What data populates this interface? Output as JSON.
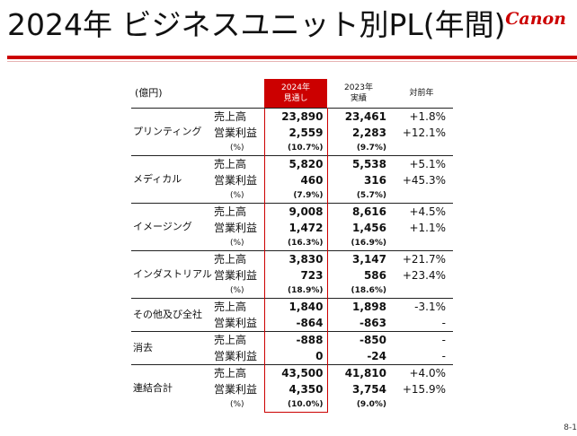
{
  "header": {
    "title": "2024年 ビジネスユニット別PL(年間)",
    "brand": "Canon",
    "page_number": "8-1"
  },
  "table": {
    "unit_label": "(億円)",
    "col_2024": [
      "2024年",
      "見通し"
    ],
    "col_2023": [
      "2023年",
      "実績"
    ],
    "col_yoy": "対前年",
    "segments": [
      {
        "name": "プリンティング",
        "rows": [
          {
            "item": "売上高",
            "v2024": "23,890",
            "v2023": "23,461",
            "yoy": "+1.8%"
          },
          {
            "item": "営業利益",
            "v2024": "2,559",
            "v2023": "2,283",
            "yoy": "+12.1%"
          },
          {
            "item": "(%)",
            "v2024": "(10.7%)",
            "v2023": "(9.7%)",
            "yoy": ""
          }
        ]
      },
      {
        "name": "メディカル",
        "rows": [
          {
            "item": "売上高",
            "v2024": "5,820",
            "v2023": "5,538",
            "yoy": "+5.1%"
          },
          {
            "item": "営業利益",
            "v2024": "460",
            "v2023": "316",
            "yoy": "+45.3%"
          },
          {
            "item": "(%)",
            "v2024": "(7.9%)",
            "v2023": "(5.7%)",
            "yoy": ""
          }
        ]
      },
      {
        "name": "イメージング",
        "rows": [
          {
            "item": "売上高",
            "v2024": "9,008",
            "v2023": "8,616",
            "yoy": "+4.5%"
          },
          {
            "item": "営業利益",
            "v2024": "1,472",
            "v2023": "1,456",
            "yoy": "+1.1%"
          },
          {
            "item": "(%)",
            "v2024": "(16.3%)",
            "v2023": "(16.9%)",
            "yoy": ""
          }
        ]
      },
      {
        "name": "インダストリアル",
        "rows": [
          {
            "item": "売上高",
            "v2024": "3,830",
            "v2023": "3,147",
            "yoy": "+21.7%"
          },
          {
            "item": "営業利益",
            "v2024": "723",
            "v2023": "586",
            "yoy": "+23.4%"
          },
          {
            "item": "(%)",
            "v2024": "(18.9%)",
            "v2023": "(18.6%)",
            "yoy": ""
          }
        ]
      },
      {
        "name": "その他及び全社",
        "rows": [
          {
            "item": "売上高",
            "v2024": "1,840",
            "v2023": "1,898",
            "yoy": "-3.1%"
          },
          {
            "item": "営業利益",
            "v2024": "-864",
            "v2023": "-863",
            "yoy": "-"
          }
        ]
      },
      {
        "name": "消去",
        "rows": [
          {
            "item": "売上高",
            "v2024": "-888",
            "v2023": "-850",
            "yoy": "-"
          },
          {
            "item": "営業利益",
            "v2024": "0",
            "v2023": "-24",
            "yoy": "-"
          }
        ]
      },
      {
        "name": "連結合計",
        "rows": [
          {
            "item": "売上高",
            "v2024": "43,500",
            "v2023": "41,810",
            "yoy": "+4.0%"
          },
          {
            "item": "営業利益",
            "v2024": "4,350",
            "v2023": "3,754",
            "yoy": "+15.9%"
          },
          {
            "item": "(%)",
            "v2024": "(10.0%)",
            "v2023": "(9.0%)",
            "yoy": ""
          }
        ]
      }
    ]
  },
  "colors": {
    "accent": "#cc0000",
    "rule": "#cc0000",
    "text": "#111111"
  }
}
